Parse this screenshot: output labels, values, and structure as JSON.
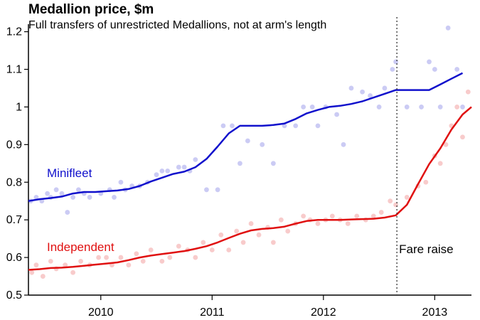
{
  "chart_data": {
    "type": "scatter",
    "title": "Medallion price, $m",
    "subtitle": "Full transfers of unrestricted Medallions, not at arm's length",
    "xlabel": "",
    "ylabel": "",
    "xlim": [
      2009.35,
      2013.33
    ],
    "ylim": [
      0.5,
      1.22
    ],
    "x_ticks": [
      2010,
      2011,
      2012,
      2013
    ],
    "x_tick_labels": [
      "2010",
      "2011",
      "2012",
      "2013"
    ],
    "y_ticks": [
      0.5,
      0.6,
      0.7,
      0.8,
      0.9,
      1.0,
      1.1,
      1.2
    ],
    "y_tick_labels": [
      "0.5",
      "0.6",
      "0.7",
      "0.8",
      "0.9",
      "1",
      "1.1",
      "1.2"
    ],
    "grid": false,
    "legend": "labels-on-chart",
    "annotations": [
      {
        "type": "vline",
        "x": 2012.66,
        "label": "Fare raise"
      }
    ],
    "series": [
      {
        "name": "Minifleet",
        "color": "#1010cc",
        "trend": [
          [
            2009.35,
            0.75
          ],
          [
            2009.45,
            0.755
          ],
          [
            2009.55,
            0.758
          ],
          [
            2009.65,
            0.762
          ],
          [
            2009.75,
            0.77
          ],
          [
            2009.85,
            0.774
          ],
          [
            2009.95,
            0.774
          ],
          [
            2010.05,
            0.776
          ],
          [
            2010.15,
            0.778
          ],
          [
            2010.25,
            0.782
          ],
          [
            2010.35,
            0.79
          ],
          [
            2010.45,
            0.802
          ],
          [
            2010.55,
            0.812
          ],
          [
            2010.65,
            0.822
          ],
          [
            2010.75,
            0.828
          ],
          [
            2010.85,
            0.84
          ],
          [
            2010.95,
            0.862
          ],
          [
            2011.05,
            0.895
          ],
          [
            2011.15,
            0.93
          ],
          [
            2011.25,
            0.95
          ],
          [
            2011.35,
            0.95
          ],
          [
            2011.45,
            0.95
          ],
          [
            2011.55,
            0.952
          ],
          [
            2011.65,
            0.956
          ],
          [
            2011.75,
            0.968
          ],
          [
            2011.85,
            0.983
          ],
          [
            2011.95,
            0.992
          ],
          [
            2012.05,
            1.0
          ],
          [
            2012.15,
            1.003
          ],
          [
            2012.25,
            1.008
          ],
          [
            2012.35,
            1.015
          ],
          [
            2012.45,
            1.025
          ],
          [
            2012.55,
            1.035
          ],
          [
            2012.65,
            1.045
          ],
          [
            2012.75,
            1.045
          ],
          [
            2012.85,
            1.045
          ],
          [
            2012.95,
            1.045
          ],
          [
            2013.05,
            1.06
          ],
          [
            2013.15,
            1.075
          ],
          [
            2013.25,
            1.09
          ]
        ],
        "points": [
          [
            2009.37,
            0.75
          ],
          [
            2009.42,
            0.76
          ],
          [
            2009.47,
            0.75
          ],
          [
            2009.52,
            0.77
          ],
          [
            2009.55,
            0.76
          ],
          [
            2009.6,
            0.78
          ],
          [
            2009.65,
            0.77
          ],
          [
            2009.7,
            0.72
          ],
          [
            2009.75,
            0.76
          ],
          [
            2009.8,
            0.78
          ],
          [
            2009.85,
            0.77
          ],
          [
            2009.9,
            0.76
          ],
          [
            2010.0,
            0.77
          ],
          [
            2010.08,
            0.78
          ],
          [
            2010.12,
            0.76
          ],
          [
            2010.18,
            0.8
          ],
          [
            2010.22,
            0.78
          ],
          [
            2010.28,
            0.79
          ],
          [
            2010.35,
            0.79
          ],
          [
            2010.42,
            0.8
          ],
          [
            2010.5,
            0.82
          ],
          [
            2010.55,
            0.83
          ],
          [
            2010.6,
            0.83
          ],
          [
            2010.7,
            0.84
          ],
          [
            2010.75,
            0.84
          ],
          [
            2010.8,
            0.83
          ],
          [
            2010.85,
            0.86
          ],
          [
            2010.95,
            0.78
          ],
          [
            2011.05,
            0.78
          ],
          [
            2011.1,
            0.95
          ],
          [
            2011.18,
            0.95
          ],
          [
            2011.25,
            0.85
          ],
          [
            2011.32,
            0.91
          ],
          [
            2011.45,
            0.9
          ],
          [
            2011.55,
            0.85
          ],
          [
            2011.65,
            0.95
          ],
          [
            2011.75,
            0.95
          ],
          [
            2011.82,
            1.0
          ],
          [
            2011.9,
            1.0
          ],
          [
            2011.95,
            0.95
          ],
          [
            2012.02,
            1.0
          ],
          [
            2012.12,
            0.98
          ],
          [
            2012.18,
            0.9
          ],
          [
            2012.25,
            1.05
          ],
          [
            2012.35,
            1.04
          ],
          [
            2012.42,
            1.03
          ],
          [
            2012.5,
            1.0
          ],
          [
            2012.55,
            1.05
          ],
          [
            2012.62,
            1.1
          ],
          [
            2012.65,
            1.12
          ],
          [
            2012.75,
            1.0
          ],
          [
            2012.88,
            1.0
          ],
          [
            2012.95,
            1.12
          ],
          [
            2013.0,
            1.1
          ],
          [
            2013.05,
            1.0
          ],
          [
            2013.12,
            1.21
          ],
          [
            2013.2,
            1.1
          ],
          [
            2013.25,
            1.0
          ]
        ]
      },
      {
        "name": "Independent",
        "color": "#e01010",
        "trend": [
          [
            2009.35,
            0.567
          ],
          [
            2009.45,
            0.569
          ],
          [
            2009.55,
            0.572
          ],
          [
            2009.65,
            0.573
          ],
          [
            2009.75,
            0.575
          ],
          [
            2009.85,
            0.578
          ],
          [
            2009.95,
            0.581
          ],
          [
            2010.05,
            0.584
          ],
          [
            2010.15,
            0.587
          ],
          [
            2010.25,
            0.593
          ],
          [
            2010.35,
            0.6
          ],
          [
            2010.45,
            0.605
          ],
          [
            2010.55,
            0.609
          ],
          [
            2010.65,
            0.613
          ],
          [
            2010.75,
            0.617
          ],
          [
            2010.85,
            0.623
          ],
          [
            2010.95,
            0.63
          ],
          [
            2011.05,
            0.64
          ],
          [
            2011.15,
            0.652
          ],
          [
            2011.25,
            0.663
          ],
          [
            2011.35,
            0.672
          ],
          [
            2011.45,
            0.676
          ],
          [
            2011.55,
            0.678
          ],
          [
            2011.65,
            0.682
          ],
          [
            2011.75,
            0.69
          ],
          [
            2011.85,
            0.697
          ],
          [
            2011.95,
            0.7
          ],
          [
            2012.05,
            0.7
          ],
          [
            2012.15,
            0.7
          ],
          [
            2012.25,
            0.701
          ],
          [
            2012.35,
            0.702
          ],
          [
            2012.45,
            0.703
          ],
          [
            2012.55,
            0.706
          ],
          [
            2012.65,
            0.712
          ],
          [
            2012.75,
            0.74
          ],
          [
            2012.85,
            0.795
          ],
          [
            2012.95,
            0.848
          ],
          [
            2013.05,
            0.89
          ],
          [
            2013.15,
            0.94
          ],
          [
            2013.25,
            0.98
          ],
          [
            2013.33,
            1.0
          ]
        ],
        "points": [
          [
            2009.38,
            0.56
          ],
          [
            2009.42,
            0.58
          ],
          [
            2009.48,
            0.55
          ],
          [
            2009.55,
            0.59
          ],
          [
            2009.6,
            0.57
          ],
          [
            2009.68,
            0.58
          ],
          [
            2009.75,
            0.56
          ],
          [
            2009.82,
            0.59
          ],
          [
            2009.9,
            0.58
          ],
          [
            2009.98,
            0.6
          ],
          [
            2010.05,
            0.6
          ],
          [
            2010.1,
            0.58
          ],
          [
            2010.18,
            0.6
          ],
          [
            2010.25,
            0.58
          ],
          [
            2010.32,
            0.61
          ],
          [
            2010.38,
            0.59
          ],
          [
            2010.45,
            0.62
          ],
          [
            2010.55,
            0.59
          ],
          [
            2010.62,
            0.6
          ],
          [
            2010.7,
            0.63
          ],
          [
            2010.78,
            0.62
          ],
          [
            2010.85,
            0.6
          ],
          [
            2010.92,
            0.64
          ],
          [
            2011.0,
            0.62
          ],
          [
            2011.08,
            0.66
          ],
          [
            2011.15,
            0.62
          ],
          [
            2011.22,
            0.67
          ],
          [
            2011.28,
            0.64
          ],
          [
            2011.35,
            0.69
          ],
          [
            2011.42,
            0.66
          ],
          [
            2011.5,
            0.68
          ],
          [
            2011.55,
            0.64
          ],
          [
            2011.62,
            0.7
          ],
          [
            2011.68,
            0.67
          ],
          [
            2011.75,
            0.69
          ],
          [
            2011.82,
            0.71
          ],
          [
            2011.88,
            0.7
          ],
          [
            2011.95,
            0.69
          ],
          [
            2012.02,
            0.7
          ],
          [
            2012.08,
            0.71
          ],
          [
            2012.15,
            0.7
          ],
          [
            2012.22,
            0.69
          ],
          [
            2012.3,
            0.71
          ],
          [
            2012.38,
            0.7
          ],
          [
            2012.45,
            0.71
          ],
          [
            2012.52,
            0.72
          ],
          [
            2012.6,
            0.75
          ],
          [
            2012.65,
            0.74
          ],
          [
            2012.75,
            0.76
          ],
          [
            2012.85,
            0.79
          ],
          [
            2012.92,
            0.8
          ],
          [
            2013.0,
            0.87
          ],
          [
            2013.05,
            0.85
          ],
          [
            2013.1,
            0.9
          ],
          [
            2013.15,
            0.95
          ],
          [
            2013.2,
            1.0
          ],
          [
            2013.25,
            0.92
          ],
          [
            2013.3,
            1.04
          ]
        ]
      }
    ]
  }
}
